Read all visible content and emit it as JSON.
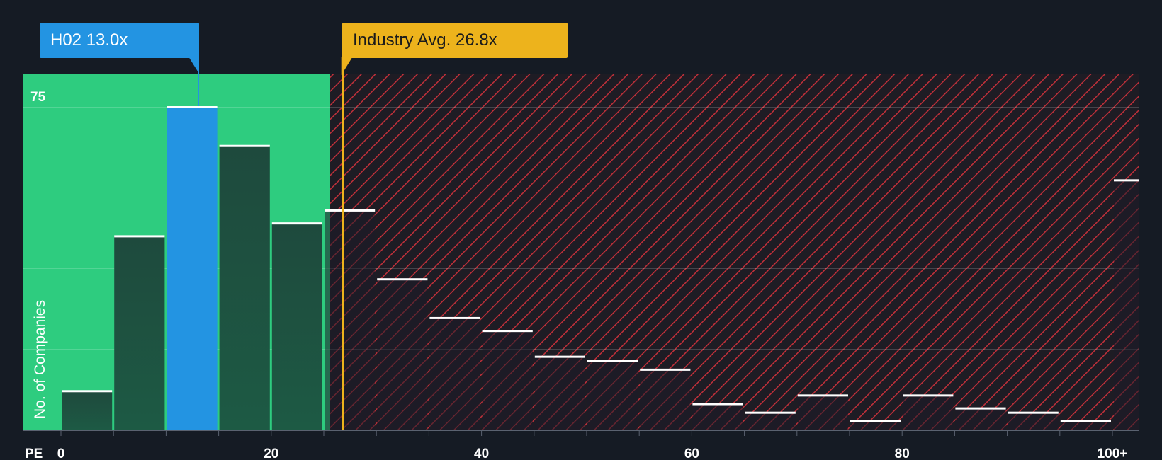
{
  "chart_data": {
    "type": "bar",
    "title": "",
    "xlabel": "PE",
    "ylabel": "No. of Companies",
    "x_ticks": [
      "0",
      "20",
      "40",
      "60",
      "80",
      "100+"
    ],
    "y_ticks": [
      "75"
    ],
    "ylim": [
      0,
      80
    ],
    "bin_width": 5,
    "bins": [
      {
        "start": 0,
        "value": 9
      },
      {
        "start": 5,
        "value": 45
      },
      {
        "start": 10,
        "value": 75
      },
      {
        "start": 15,
        "value": 66
      },
      {
        "start": 20,
        "value": 48
      },
      {
        "start": 25,
        "value": 51
      },
      {
        "start": 30,
        "value": 35
      },
      {
        "start": 35,
        "value": 26
      },
      {
        "start": 40,
        "value": 23
      },
      {
        "start": 45,
        "value": 17
      },
      {
        "start": 50,
        "value": 16
      },
      {
        "start": 55,
        "value": 14
      },
      {
        "start": 60,
        "value": 6
      },
      {
        "start": 65,
        "value": 4
      },
      {
        "start": 70,
        "value": 8
      },
      {
        "start": 75,
        "value": 2
      },
      {
        "start": 80,
        "value": 8
      },
      {
        "start": 85,
        "value": 5
      },
      {
        "start": 90,
        "value": 4
      },
      {
        "start": 95,
        "value": 2
      },
      {
        "start": 100,
        "value": 58
      }
    ],
    "company": {
      "label": "H02 13.0x",
      "value": 13.0
    },
    "industry_avg": {
      "label": "Industry Avg. 26.8x",
      "value": 26.8
    },
    "colors": {
      "background": "#151b24",
      "fair_zone": "#2ecc7f",
      "overvalued_hatch": "#c0303a",
      "bar": "#1e4a3d",
      "highlight_bar": "#2394e2",
      "industry_line": "#edb31c"
    }
  }
}
